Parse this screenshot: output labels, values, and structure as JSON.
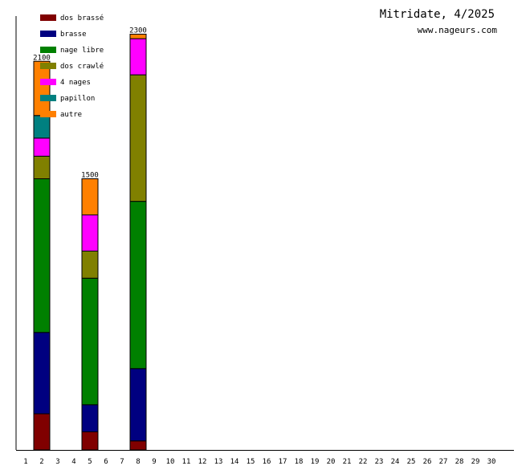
{
  "chart_data": {
    "type": "bar",
    "stacked": true,
    "title": "Mitridate, 4/2025",
    "subtitle": "www.nageurs.com",
    "x": [
      1,
      2,
      3,
      4,
      5,
      6,
      7,
      8,
      9,
      10,
      11,
      12,
      13,
      14,
      15,
      16,
      17,
      18,
      19,
      20,
      21,
      22,
      23,
      24,
      25,
      26,
      27,
      28,
      29,
      30
    ],
    "ylim": [
      0,
      2400
    ],
    "grid": false,
    "legend_position": "top-left",
    "series": [
      {
        "name": "dos brassé",
        "color": "#800000",
        "values": {
          "2": 200,
          "5": 100,
          "8": 50
        }
      },
      {
        "name": "brasse",
        "color": "#000080",
        "values": {
          "2": 450,
          "5": 150,
          "8": 400
        }
      },
      {
        "name": "nage libre",
        "color": "#008000",
        "values": {
          "2": 850,
          "5": 700,
          "8": 925
        }
      },
      {
        "name": "dos crawlé",
        "color": "#808000",
        "values": {
          "2": 125,
          "5": 150,
          "8": 700
        }
      },
      {
        "name": "4 nages",
        "color": "#ff00ff",
        "values": {
          "2": 100,
          "5": 200,
          "8": 200
        }
      },
      {
        "name": "papillon",
        "color": "#008080",
        "values": {
          "2": 125,
          "5": 0,
          "8": 0
        }
      },
      {
        "name": "autre",
        "color": "#ff8000",
        "values": {
          "2": 300,
          "5": 200,
          "8": 25
        }
      }
    ],
    "totals": {
      "2": "2100",
      "5": "1500",
      "8": "2300"
    }
  }
}
